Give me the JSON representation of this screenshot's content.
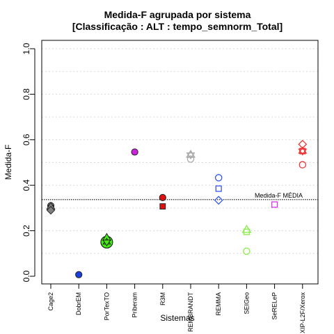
{
  "chart_data": {
    "type": "scatter",
    "title": "Medida-F agrupada por sistema",
    "subtitle": "[Classificação : ALT : tempo_semnorm_Total]",
    "xlabel": "Sistemas",
    "ylabel": "Medida-F",
    "ylim": [
      0,
      1
    ],
    "yticks": [
      "0.0",
      "0.2",
      "0.4",
      "0.6",
      "0.8",
      "1.0"
    ],
    "grid": true,
    "categories": [
      "Cage2",
      "DobrEM",
      "PorTexTO",
      "Priberam",
      "R3M",
      "REMBRANDT",
      "REMMA",
      "SEIGeo",
      "SeRELeP",
      "XIP-L2F/Xerox"
    ],
    "reference_line": {
      "label": "Medida-F MÉDIA",
      "value": 0.337
    },
    "points": [
      {
        "system": "Cage2",
        "value": 0.31,
        "shape": "circle",
        "color": "#808080",
        "filled": true,
        "big": false
      },
      {
        "system": "Cage2",
        "value": 0.3,
        "shape": "square",
        "color": "#808080",
        "filled": true,
        "big": false
      },
      {
        "system": "Cage2",
        "value": 0.307,
        "shape": "triangle",
        "color": "#808080",
        "filled": true,
        "big": false
      },
      {
        "system": "Cage2",
        "value": 0.29,
        "shape": "diamond",
        "color": "#808080",
        "filled": true,
        "big": false
      },
      {
        "system": "DobrEM",
        "value": 0.007,
        "shape": "circle",
        "color": "#1a3fe0",
        "filled": true,
        "big": false
      },
      {
        "system": "PorTexTO",
        "value": 0.15,
        "shape": "circle",
        "color": "#44ee11",
        "filled": true,
        "big": true
      },
      {
        "system": "PorTexTO",
        "value": 0.17,
        "shape": "triangle",
        "color": "#44ee11",
        "filled": true,
        "big": false
      },
      {
        "system": "PorTexTO",
        "value": 0.15,
        "shape": "star",
        "color": "#44ee11",
        "filled": true,
        "big": false
      },
      {
        "system": "Priberam",
        "value": 0.546,
        "shape": "circle",
        "color": "#cc22dd",
        "filled": true,
        "big": false
      },
      {
        "system": "R3M",
        "value": 0.346,
        "shape": "circle",
        "color": "#dd1111",
        "filled": true,
        "big": false
      },
      {
        "system": "R3M",
        "value": 0.307,
        "shape": "square",
        "color": "#dd1111",
        "filled": true,
        "big": false
      },
      {
        "system": "REMBRANDT",
        "value": 0.535,
        "shape": "triangle",
        "color": "#aaaaaa",
        "filled": false,
        "big": false
      },
      {
        "system": "REMBRANDT",
        "value": 0.533,
        "shape": "star",
        "color": "#aaaaaa",
        "filled": false,
        "big": false
      },
      {
        "system": "REMBRANDT",
        "value": 0.515,
        "shape": "circle",
        "color": "#aaaaaa",
        "filled": false,
        "big": false
      },
      {
        "system": "REMMA",
        "value": 0.433,
        "shape": "circle",
        "color": "#3355ee",
        "filled": false,
        "big": false
      },
      {
        "system": "REMMA",
        "value": 0.385,
        "shape": "square",
        "color": "#3355ee",
        "filled": false,
        "big": false
      },
      {
        "system": "REMMA",
        "value": 0.334,
        "shape": "diamond",
        "color": "#3355ee",
        "filled": false,
        "big": false
      },
      {
        "system": "SEIGeo",
        "value": 0.205,
        "shape": "triangle",
        "color": "#88ee44",
        "filled": false,
        "big": false
      },
      {
        "system": "SEIGeo",
        "value": 0.195,
        "shape": "square",
        "color": "#88ee44",
        "filled": false,
        "big": false
      },
      {
        "system": "SEIGeo",
        "value": 0.11,
        "shape": "circle",
        "color": "#88ee44",
        "filled": false,
        "big": false
      },
      {
        "system": "SeRELeP",
        "value": 0.315,
        "shape": "square",
        "color": "#dd33ee",
        "filled": false,
        "big": false
      },
      {
        "system": "XIP-L2F/Xerox",
        "value": 0.58,
        "shape": "diamond",
        "color": "#ee3333",
        "filled": false,
        "big": false
      },
      {
        "system": "XIP-L2F/Xerox",
        "value": 0.55,
        "shape": "star",
        "color": "#ee3333",
        "filled": false,
        "big": false
      },
      {
        "system": "XIP-L2F/Xerox",
        "value": 0.55,
        "shape": "square",
        "color": "#ee3333",
        "filled": false,
        "big": false
      },
      {
        "system": "XIP-L2F/Xerox",
        "value": 0.49,
        "shape": "circle",
        "color": "#ee3333",
        "filled": false,
        "big": false
      }
    ]
  }
}
